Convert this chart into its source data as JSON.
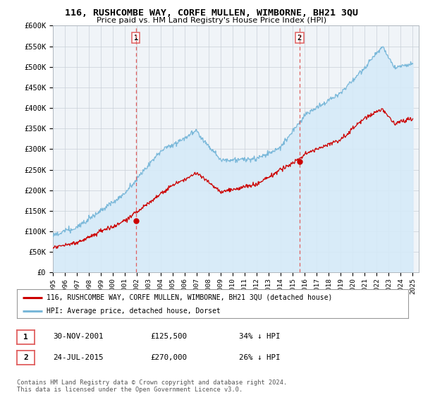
{
  "title": "116, RUSHCOMBE WAY, CORFE MULLEN, WIMBORNE, BH21 3QU",
  "subtitle": "Price paid vs. HM Land Registry's House Price Index (HPI)",
  "ylim": [
    0,
    600000
  ],
  "yticks": [
    0,
    50000,
    100000,
    150000,
    200000,
    250000,
    300000,
    350000,
    400000,
    450000,
    500000,
    550000,
    600000
  ],
  "ytick_labels": [
    "£0",
    "£50K",
    "£100K",
    "£150K",
    "£200K",
    "£250K",
    "£300K",
    "£350K",
    "£400K",
    "£450K",
    "£500K",
    "£550K",
    "£600K"
  ],
  "xlim_start": 1995.0,
  "xlim_end": 2025.5,
  "xtick_years": [
    1995,
    1996,
    1997,
    1998,
    1999,
    2000,
    2001,
    2002,
    2003,
    2004,
    2005,
    2006,
    2007,
    2008,
    2009,
    2010,
    2011,
    2012,
    2013,
    2014,
    2015,
    2016,
    2017,
    2018,
    2019,
    2020,
    2021,
    2022,
    2023,
    2024,
    2025
  ],
  "hpi_color": "#7ab8d9",
  "hpi_fill_color": "#d6eaf8",
  "price_color": "#cc0000",
  "sale1_date": 2001.92,
  "sale1_price": 125500,
  "sale2_date": 2015.56,
  "sale2_price": 270000,
  "vline_color": "#e06060",
  "legend_line1": "116, RUSHCOMBE WAY, CORFE MULLEN, WIMBORNE, BH21 3QU (detached house)",
  "legend_line2": "HPI: Average price, detached house, Dorset",
  "note1_label": "1",
  "note1_date": "30-NOV-2001",
  "note1_price": "£125,500",
  "note1_hpi": "34% ↓ HPI",
  "note2_label": "2",
  "note2_date": "24-JUL-2015",
  "note2_price": "£270,000",
  "note2_hpi": "26% ↓ HPI",
  "footer": "Contains HM Land Registry data © Crown copyright and database right 2024.\nThis data is licensed under the Open Government Licence v3.0.",
  "bg_color": "#ffffff"
}
